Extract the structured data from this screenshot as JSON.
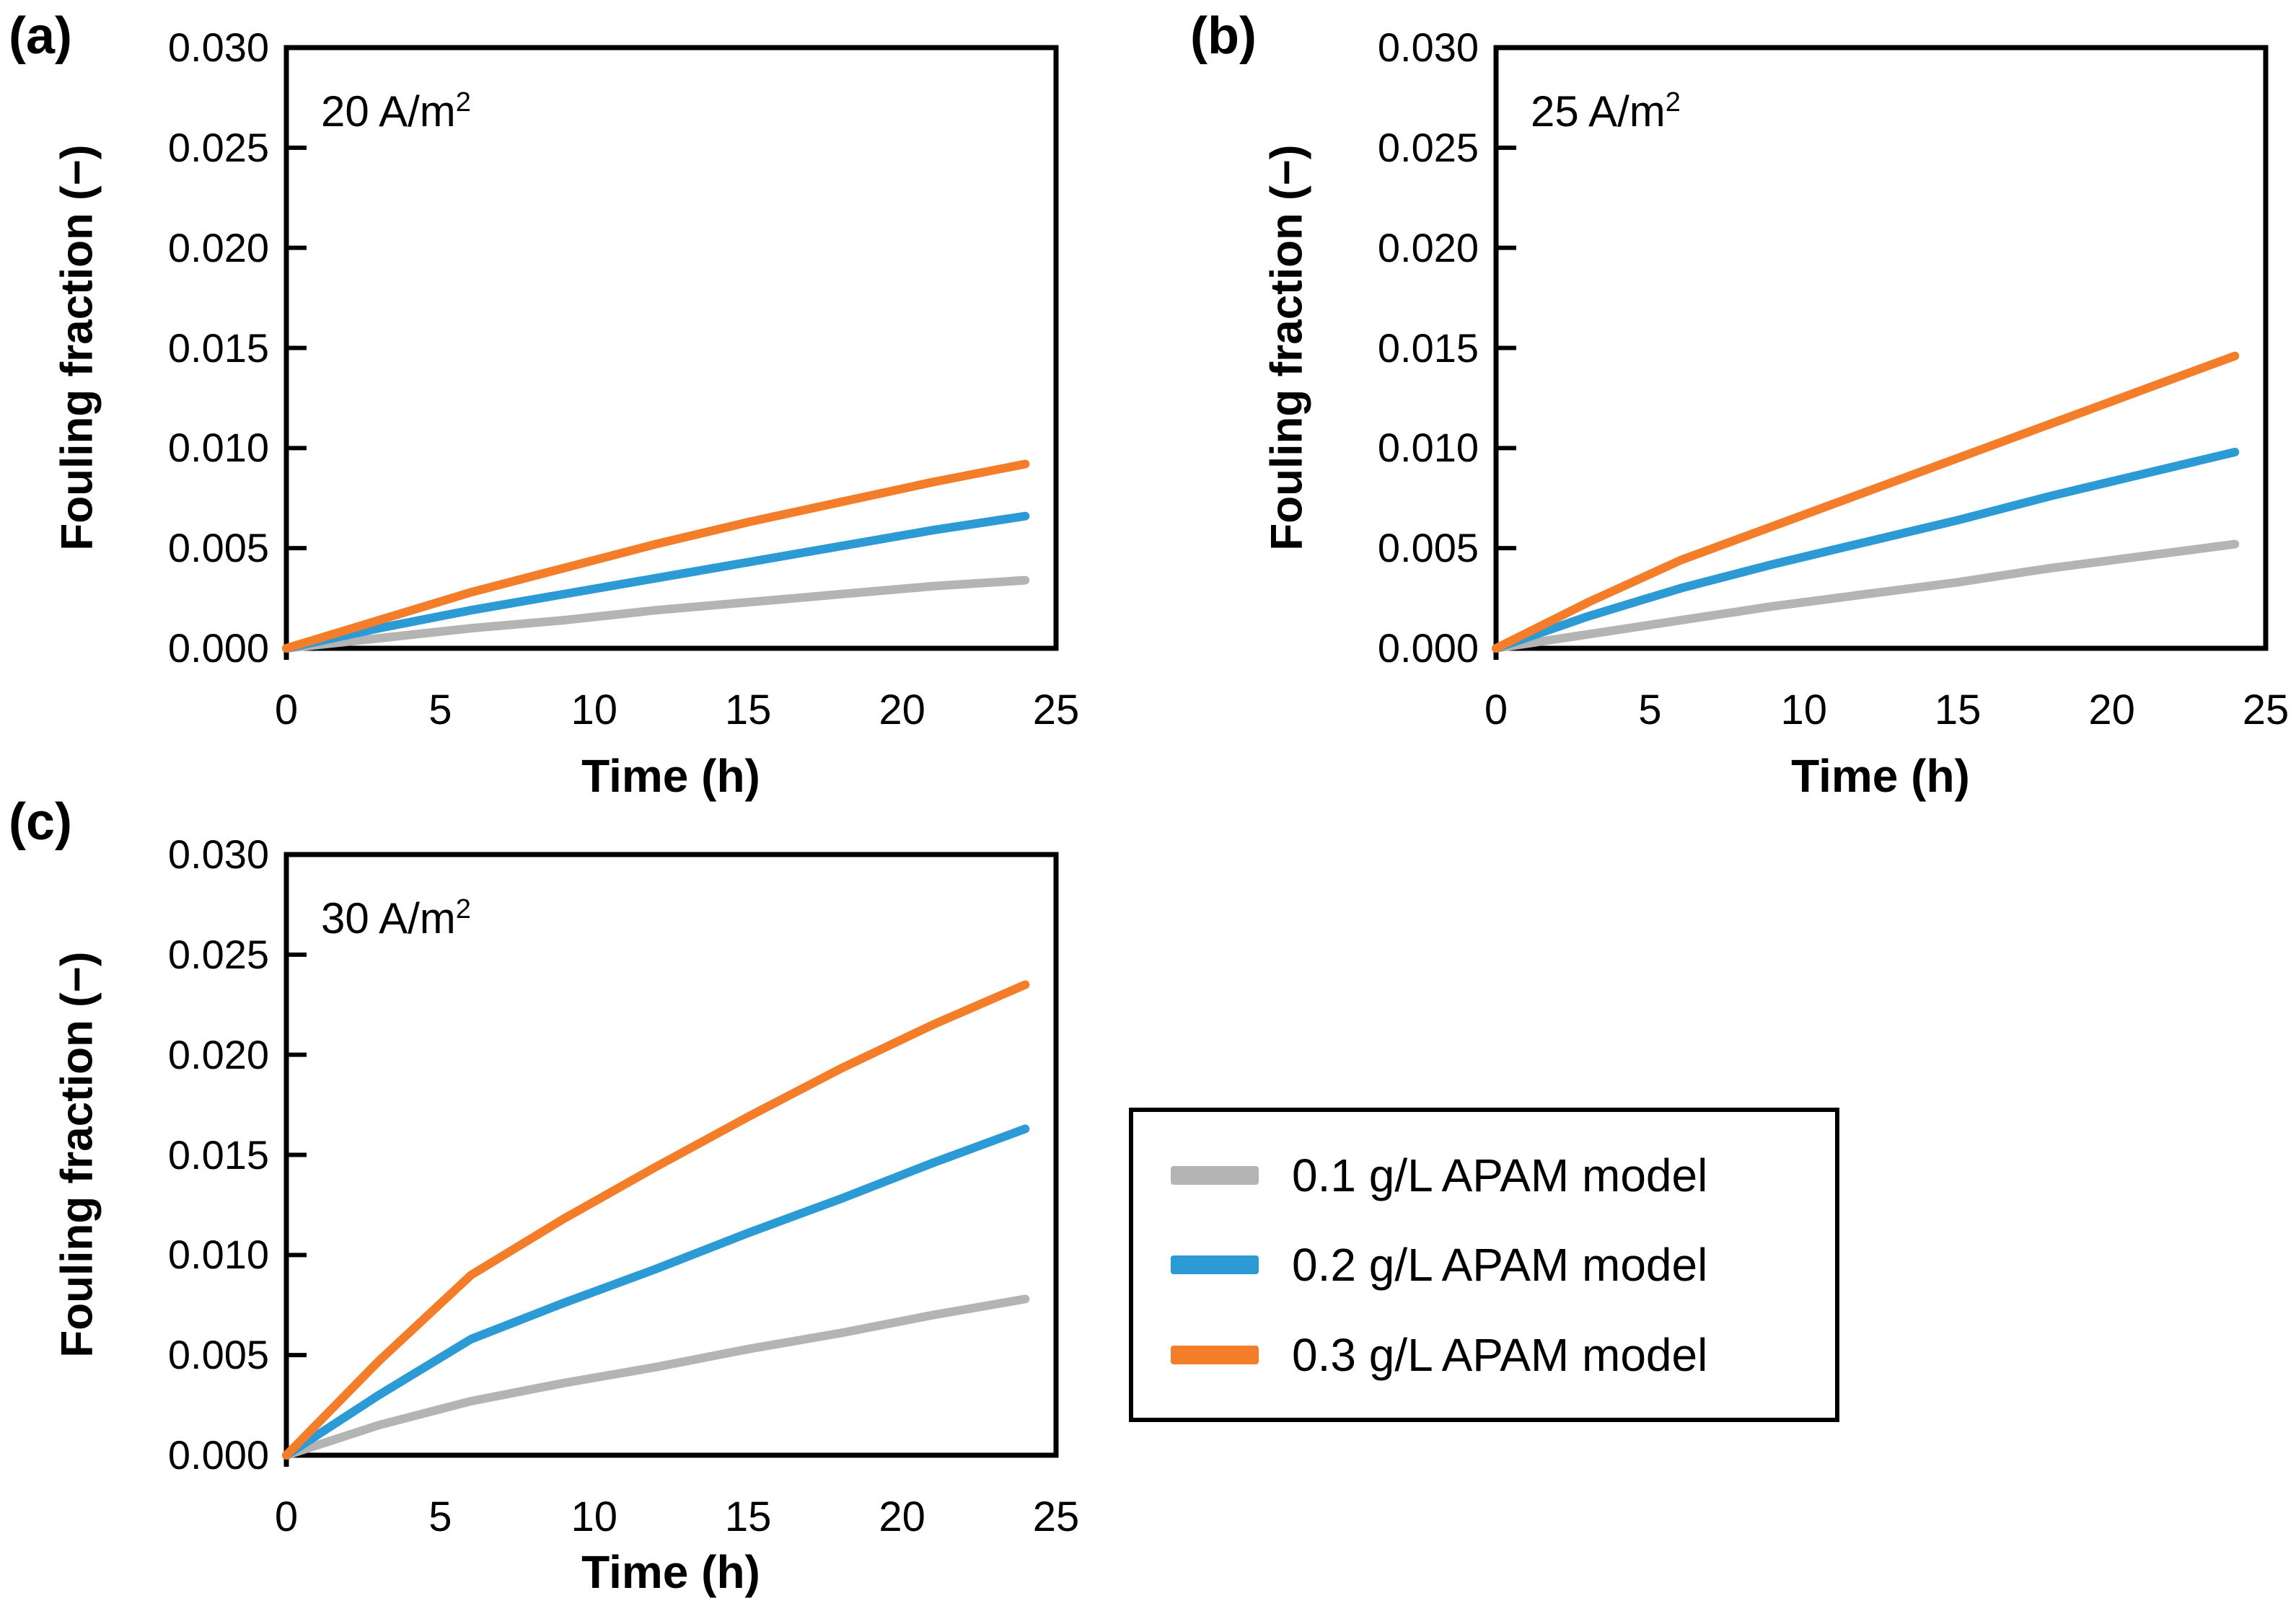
{
  "colors": {
    "axis": "#000000",
    "gray_series": "#B4B4B4",
    "blue_series": "#2B9AD5",
    "orange_series": "#F47D2A"
  },
  "chart_data": [
    {
      "type": "line",
      "panel_label": "(a)",
      "annotation_base": "20 A/m",
      "annotation_sup": "2",
      "xlabel": "Time (h)",
      "ylabel": "Fouling fraction (−)",
      "xlim": [
        0,
        25
      ],
      "ylim": [
        0,
        0.03
      ],
      "grid": false,
      "legend_position": "none",
      "xticks": {
        "values": [
          0,
          5,
          10,
          15,
          20,
          25
        ],
        "labels": [
          "0",
          "5",
          "10",
          "15",
          "20",
          "25"
        ]
      },
      "yticks": {
        "values": [
          0,
          0.005,
          0.01,
          0.015,
          0.02,
          0.025,
          0.03
        ],
        "labels": [
          "0.000",
          "0.005",
          "0.010",
          "0.015",
          "0.020",
          "0.025",
          "0.030"
        ]
      },
      "x": [
        0,
        3,
        6,
        9,
        12,
        15,
        18,
        21,
        24
      ],
      "series": [
        {
          "name": "0.1 g/L APAM model",
          "color": "#B4B4B4",
          "values": [
            0,
            0.0005,
            0.001,
            0.0014,
            0.0019,
            0.0023,
            0.0027,
            0.0031,
            0.0034
          ]
        },
        {
          "name": "0.2 g/L APAM model",
          "color": "#2B9AD5",
          "values": [
            0,
            0.001,
            0.0019,
            0.0027,
            0.0035,
            0.0043,
            0.0051,
            0.0059,
            0.0066
          ]
        },
        {
          "name": "0.3 g/L APAM model",
          "color": "#F47D2A",
          "values": [
            0,
            0.0014,
            0.0028,
            0.004,
            0.0052,
            0.0063,
            0.0073,
            0.0083,
            0.0092
          ]
        }
      ]
    },
    {
      "type": "line",
      "panel_label": "(b)",
      "annotation_base": "25 A/m",
      "annotation_sup": "2",
      "xlabel": "Time (h)",
      "ylabel": "Fouling fraction (−)",
      "xlim": [
        0,
        25
      ],
      "ylim": [
        0,
        0.03
      ],
      "grid": false,
      "legend_position": "none",
      "xticks": {
        "values": [
          0,
          5,
          10,
          15,
          20,
          25
        ],
        "labels": [
          "0",
          "5",
          "10",
          "15",
          "20",
          "25"
        ]
      },
      "yticks": {
        "values": [
          0,
          0.005,
          0.01,
          0.015,
          0.02,
          0.025,
          0.03
        ],
        "labels": [
          "0.000",
          "0.005",
          "0.010",
          "0.015",
          "0.020",
          "0.025",
          "0.030"
        ]
      },
      "x": [
        0,
        3,
        6,
        9,
        12,
        15,
        18,
        21,
        24
      ],
      "series": [
        {
          "name": "0.1 g/L APAM model",
          "color": "#B4B4B4",
          "values": [
            0,
            0.0007,
            0.0014,
            0.0021,
            0.0027,
            0.0033,
            0.004,
            0.0046,
            0.0052
          ]
        },
        {
          "name": "0.2 g/L APAM model",
          "color": "#2B9AD5",
          "values": [
            0,
            0.0016,
            0.003,
            0.0042,
            0.0053,
            0.0064,
            0.0076,
            0.0087,
            0.0098
          ]
        },
        {
          "name": "0.3 g/L APAM model",
          "color": "#F47D2A",
          "values": [
            0,
            0.0023,
            0.0044,
            0.0061,
            0.0078,
            0.0095,
            0.0112,
            0.0129,
            0.0146
          ]
        }
      ]
    },
    {
      "type": "line",
      "panel_label": "(c)",
      "annotation_base": "30 A/m",
      "annotation_sup": "2",
      "xlabel": "Time (h)",
      "ylabel": "Fouling fraction (−)",
      "xlim": [
        0,
        25
      ],
      "ylim": [
        0,
        0.03
      ],
      "grid": false,
      "legend_position": "none",
      "xticks": {
        "values": [
          0,
          5,
          10,
          15,
          20,
          25
        ],
        "labels": [
          "0",
          "5",
          "10",
          "15",
          "20",
          "25"
        ]
      },
      "yticks": {
        "values": [
          0,
          0.005,
          0.01,
          0.015,
          0.02,
          0.025,
          0.03
        ],
        "labels": [
          "0.000",
          "0.005",
          "0.010",
          "0.015",
          "0.020",
          "0.025",
          "0.030"
        ]
      },
      "x": [
        0,
        3,
        6,
        9,
        12,
        15,
        18,
        21,
        24
      ],
      "series": [
        {
          "name": "0.1 g/L APAM model",
          "color": "#B4B4B4",
          "values": [
            0,
            0.0015,
            0.0027,
            0.0036,
            0.0044,
            0.0053,
            0.0061,
            0.007,
            0.0078
          ]
        },
        {
          "name": "0.2 g/L APAM model",
          "color": "#2B9AD5",
          "values": [
            0,
            0.003,
            0.0058,
            0.0076,
            0.0093,
            0.0111,
            0.0128,
            0.0146,
            0.0163
          ]
        },
        {
          "name": "0.3 g/L APAM model",
          "color": "#F47D2A",
          "values": [
            0,
            0.0047,
            0.009,
            0.0118,
            0.0144,
            0.0169,
            0.0193,
            0.0215,
            0.0235
          ]
        }
      ]
    }
  ],
  "legend": {
    "items": [
      {
        "label": "0.1 g/L APAM model"
      },
      {
        "label": "0.2 g/L APAM model"
      },
      {
        "label": "0.3 g/L APAM model"
      }
    ]
  }
}
